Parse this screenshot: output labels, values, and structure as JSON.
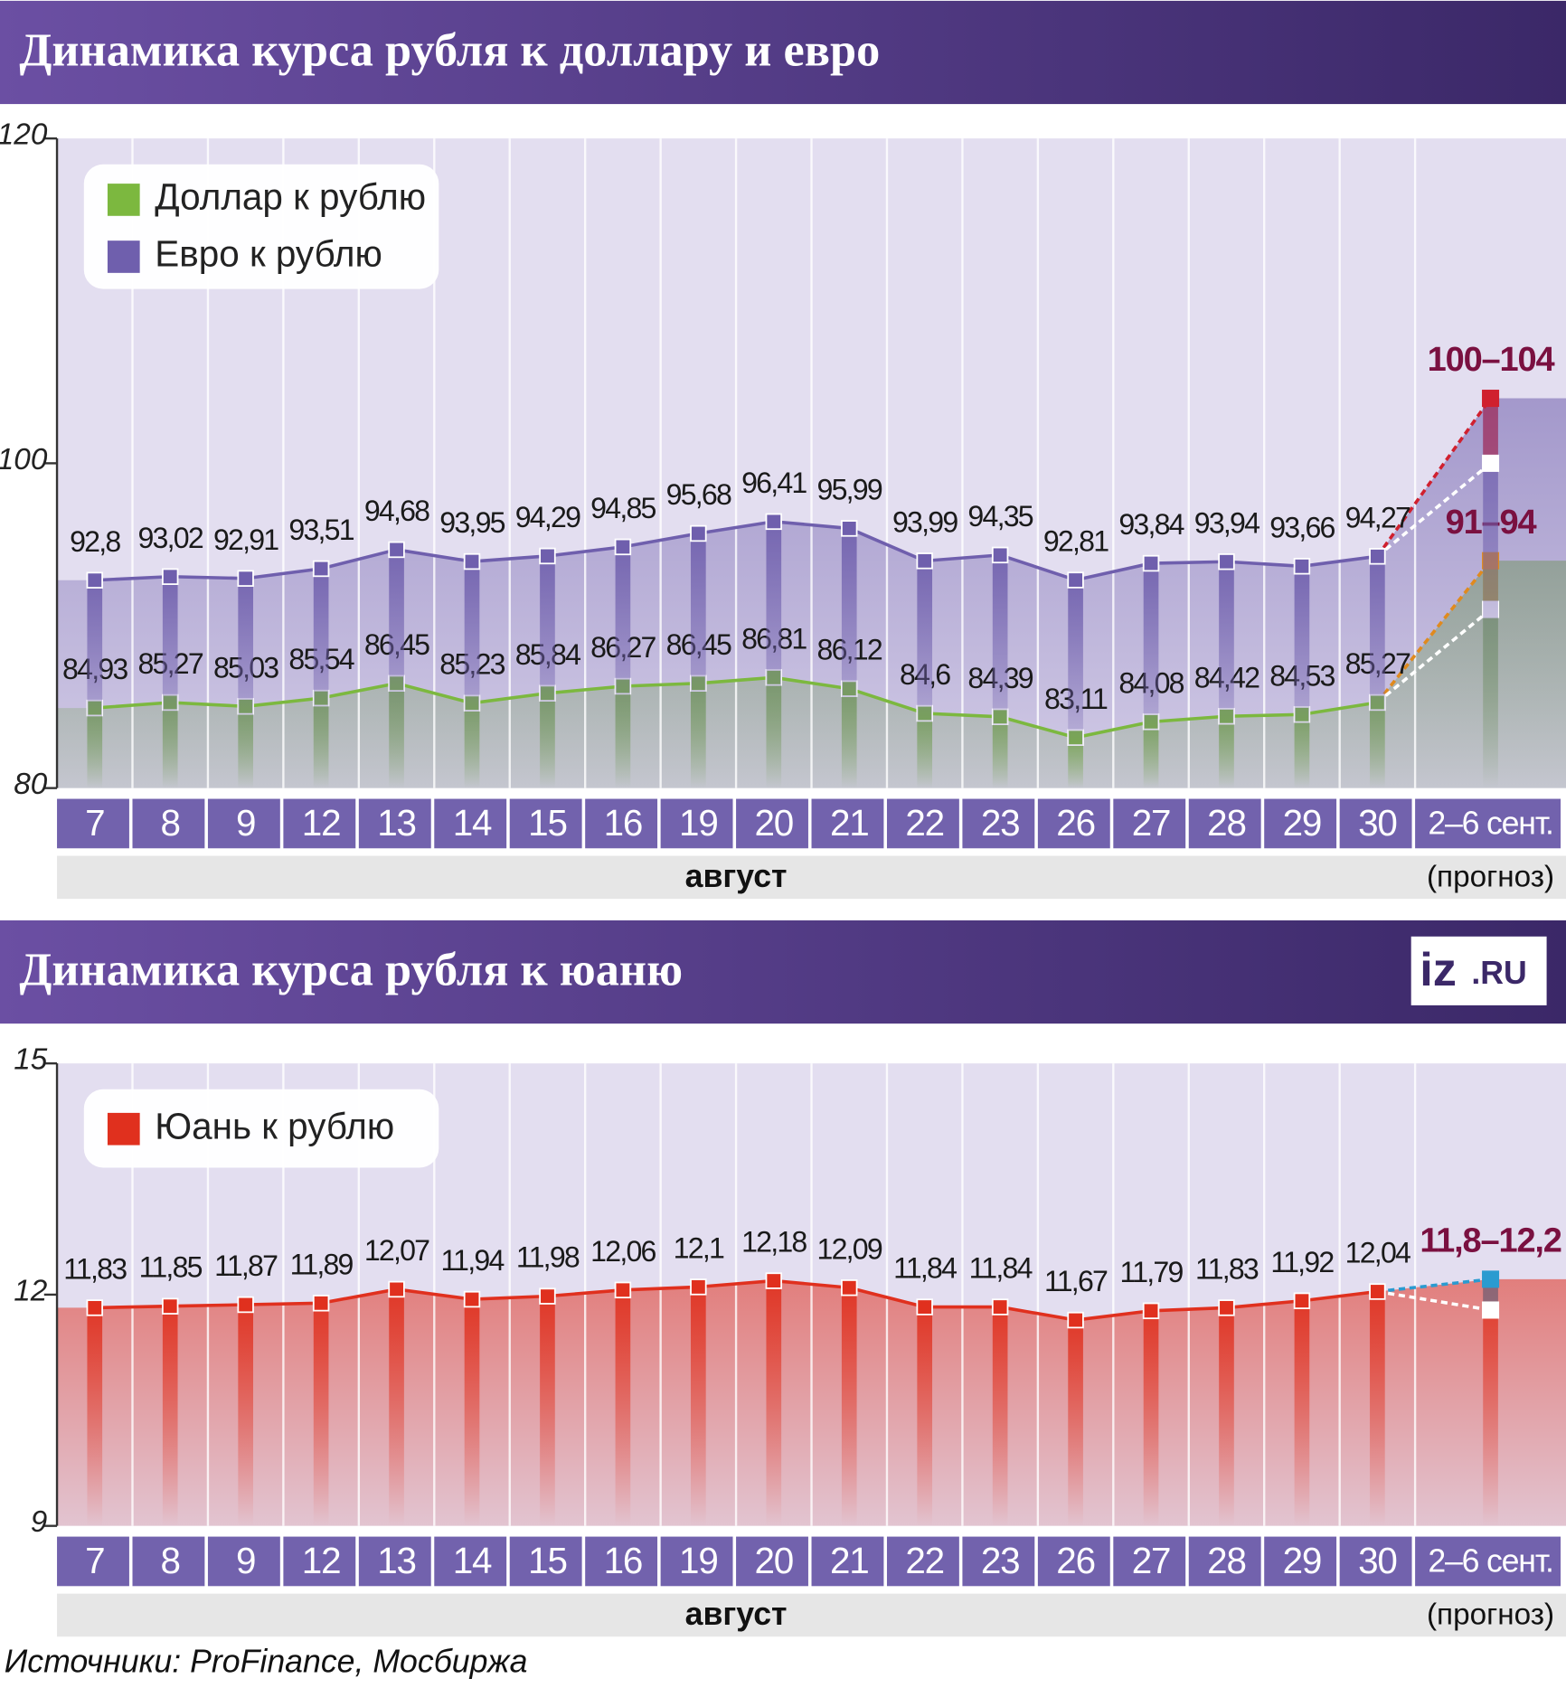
{
  "chart_data": [
    {
      "type": "line",
      "title": "Динамика курса рубля к доллару и евро",
      "categories": [
        "7",
        "8",
        "9",
        "12",
        "13",
        "14",
        "15",
        "16",
        "19",
        "20",
        "21",
        "22",
        "23",
        "26",
        "27",
        "28",
        "29",
        "30",
        "2–6 сент."
      ],
      "period": "август",
      "forecast_note": "(прогноз)",
      "ylim": [
        80,
        120
      ],
      "yticks": [
        80,
        100,
        120
      ],
      "series": [
        {
          "name": "Доллар к рублю",
          "color": "#7cb83f",
          "forecast_color": "#e08a1e",
          "values": [
            84.93,
            85.27,
            85.03,
            85.54,
            86.45,
            85.23,
            85.84,
            86.27,
            86.45,
            86.81,
            86.12,
            84.6,
            84.39,
            83.11,
            84.08,
            84.42,
            84.53,
            85.27,
            null
          ],
          "value_labels": [
            "84,93",
            "85,27",
            "85,03",
            "85,54",
            "86,45",
            "85,23",
            "85,84",
            "86,27",
            "86,45",
            "86,81",
            "86,12",
            "84,6",
            "84,39",
            "83,11",
            "84,08",
            "84,42",
            "84,53",
            "85,27",
            null
          ],
          "forecast": [
            91,
            94
          ],
          "forecast_label": "91–94"
        },
        {
          "name": "Евро к рублю",
          "color": "#6f5fad",
          "forecast_color": "#d0202e",
          "values": [
            92.8,
            93.02,
            92.91,
            93.51,
            94.68,
            93.95,
            94.29,
            94.85,
            95.68,
            96.41,
            95.99,
            93.99,
            94.35,
            92.81,
            93.84,
            93.94,
            93.66,
            94.27,
            null
          ],
          "value_labels": [
            "92,8",
            "93,02",
            "92,91",
            "93,51",
            "94,68",
            "93,95",
            "94,29",
            "94,85",
            "95,68",
            "96,41",
            "95,99",
            "93,99",
            "94,35",
            "92,81",
            "93,84",
            "93,94",
            "93,66",
            "94,27",
            null
          ],
          "forecast": [
            100,
            104
          ],
          "forecast_label": "100–104"
        }
      ]
    },
    {
      "type": "line",
      "title": "Динамика курса рубля к юаню",
      "categories": [
        "7",
        "8",
        "9",
        "12",
        "13",
        "14",
        "15",
        "16",
        "19",
        "20",
        "21",
        "22",
        "23",
        "26",
        "27",
        "28",
        "29",
        "30",
        "2–6 сент."
      ],
      "period": "август",
      "forecast_note": "(прогноз)",
      "ylim": [
        9,
        15
      ],
      "yticks": [
        9,
        12,
        15
      ],
      "series": [
        {
          "name": "Юань к рублю",
          "color": "#e0301e",
          "forecast_color": "#2a9bd0",
          "values": [
            11.83,
            11.85,
            11.87,
            11.89,
            12.07,
            11.94,
            11.98,
            12.06,
            12.1,
            12.18,
            12.09,
            11.84,
            11.84,
            11.67,
            11.79,
            11.83,
            11.92,
            12.04,
            null
          ],
          "value_labels": [
            "11,83",
            "11,85",
            "11,87",
            "11,89",
            "12,07",
            "11,94",
            "11,98",
            "12,06",
            "12,1",
            "12,18",
            "12,09",
            "11,84",
            "11,84",
            "11,67",
            "11,79",
            "11,83",
            "11,92",
            "12,04",
            null
          ],
          "forecast": [
            11.8,
            12.2
          ],
          "forecast_label": "11,8–12,2"
        }
      ]
    }
  ],
  "logo_left": "iz",
  "logo_right": ".RU",
  "source": "Источники: ProFinance, Мосбиржа"
}
